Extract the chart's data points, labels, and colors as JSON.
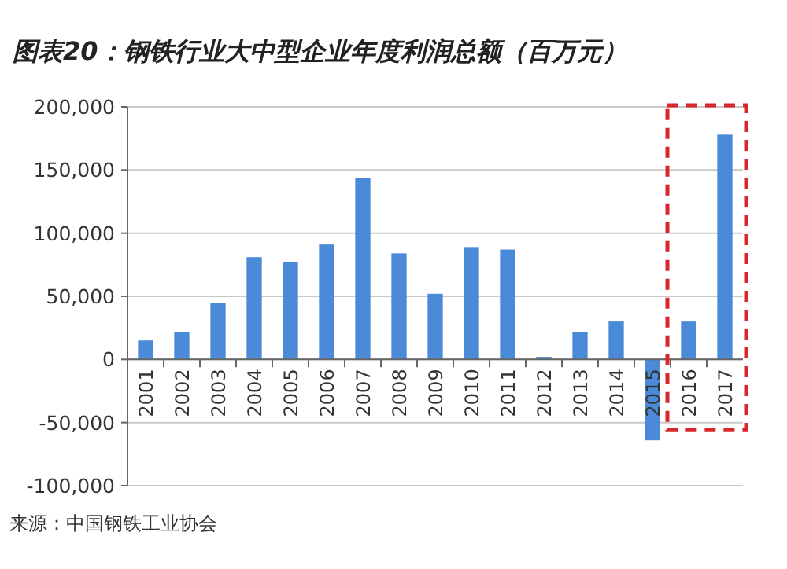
{
  "chart_data": {
    "type": "bar",
    "title": "图表20：钢铁行业大中型企业年度利润总额（百万元）",
    "categories": [
      "2001",
      "2002",
      "2003",
      "2004",
      "2005",
      "2006",
      "2007",
      "2008",
      "2009",
      "2010",
      "2011",
      "2012",
      "2013",
      "2014",
      "2015",
      "2016",
      "2017"
    ],
    "values": [
      15000,
      22000,
      45000,
      81000,
      77000,
      91000,
      144000,
      84000,
      52000,
      89000,
      87000,
      2000,
      22000,
      30000,
      -64000,
      30000,
      178000
    ],
    "color": "#4a8ad8",
    "ylim": [
      -100000,
      200000
    ],
    "yticks": [
      {
        "value": -100000,
        "label": "-100,000"
      },
      {
        "value": -50000,
        "label": "-50,000"
      },
      {
        "value": 0,
        "label": "0"
      },
      {
        "value": 50000,
        "label": "50,000"
      },
      {
        "value": 100000,
        "label": "100,000"
      },
      {
        "value": 150000,
        "label": "150,000"
      },
      {
        "value": 200000,
        "label": "200,000"
      }
    ],
    "grid": "y",
    "annotations": [
      "来源：中国钢铁工业协会"
    ]
  }
}
